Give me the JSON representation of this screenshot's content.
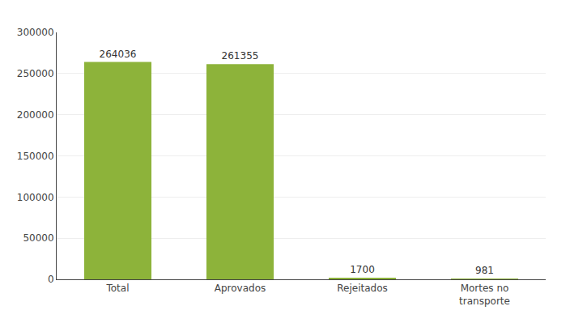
{
  "chart_data": {
    "type": "bar",
    "categories": [
      "Total",
      "Aprovados",
      "Rejeitados",
      "Mortes no\ntransporte"
    ],
    "values": [
      264036,
      261355,
      1700,
      981
    ],
    "color": "#8db33a",
    "ylim": [
      0,
      300000
    ],
    "yticks": [
      0,
      50000,
      100000,
      150000,
      200000,
      250000,
      300000
    ],
    "grid": true,
    "data_labels": true
  }
}
